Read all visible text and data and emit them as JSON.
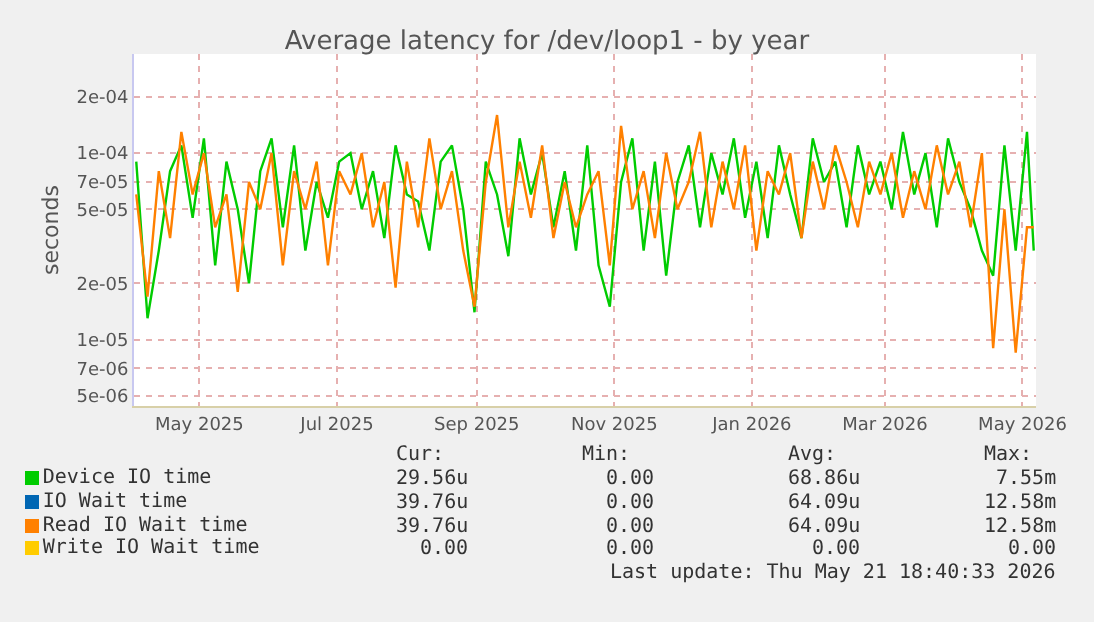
{
  "chart_data": {
    "type": "line",
    "title": "Average latency for /dev/loop1 - by year",
    "ylabel": "seconds",
    "log": "y",
    "grid": true,
    "legend": "bottom left",
    "marker": "none",
    "line_style": "solid",
    "x": [
      "2025-04-17",
      "2025-04-22",
      "2025-04-27",
      "2025-05-02",
      "2025-05-07",
      "2025-05-12",
      "2025-05-17",
      "2025-05-22",
      "2025-05-27",
      "2025-06-01",
      "2025-06-06",
      "2025-06-11",
      "2025-06-16",
      "2025-06-21",
      "2025-06-26",
      "2025-07-01",
      "2025-07-06",
      "2025-07-11",
      "2025-07-16",
      "2025-07-21",
      "2025-07-26",
      "2025-07-31",
      "2025-08-05",
      "2025-08-10",
      "2025-08-15",
      "2025-08-20",
      "2025-08-25",
      "2025-08-30",
      "2025-09-04",
      "2025-09-09",
      "2025-09-14",
      "2025-09-19",
      "2025-09-24",
      "2025-09-29",
      "2025-10-04",
      "2025-10-09",
      "2025-10-14",
      "2025-10-19",
      "2025-10-24",
      "2025-10-29",
      "2025-11-03",
      "2025-11-08",
      "2025-11-13",
      "2025-11-18",
      "2025-11-23",
      "2025-11-28",
      "2025-12-03",
      "2025-12-08",
      "2025-12-13",
      "2025-12-18",
      "2025-12-23",
      "2025-12-28",
      "2026-01-02",
      "2026-01-07",
      "2026-01-12",
      "2026-01-17",
      "2026-01-22",
      "2026-01-27",
      "2026-02-01",
      "2026-02-06",
      "2026-02-11",
      "2026-02-16",
      "2026-02-21",
      "2026-02-26",
      "2026-03-03",
      "2026-03-08",
      "2026-03-13",
      "2026-03-18",
      "2026-03-23",
      "2026-03-28",
      "2026-04-02",
      "2026-04-07",
      "2026-04-12",
      "2026-04-17",
      "2026-04-22",
      "2026-04-27",
      "2026-05-02",
      "2026-05-07",
      "2026-05-12",
      "2026-05-17",
      "2026-05-20"
    ],
    "xlim": [
      "2025-04-16",
      "2026-05-21"
    ],
    "xticks": [
      {
        "value": "2025-05-15",
        "label": "May 2025"
      },
      {
        "value": "2025-07-15",
        "label": "Jul 2025"
      },
      {
        "value": "2025-09-15",
        "label": "Sep 2025"
      },
      {
        "value": "2025-11-15",
        "label": "Nov 2025"
      },
      {
        "value": "2026-01-15",
        "label": "Jan 2026"
      },
      {
        "value": "2026-03-15",
        "label": "Mar 2026"
      },
      {
        "value": "2026-05-15",
        "label": "May 2026"
      }
    ],
    "ylim": [
      4.4e-06,
      0.00034
    ],
    "yticks": [
      {
        "value": 5e-06,
        "label": "5e-06"
      },
      {
        "value": 7e-06,
        "label": "7e-06"
      },
      {
        "value": 1e-05,
        "label": "1e-05"
      },
      {
        "value": 2e-05,
        "label": "2e-05"
      },
      {
        "value": 5e-05,
        "label": "5e-05"
      },
      {
        "value": 7e-05,
        "label": "7e-05"
      },
      {
        "value": 0.0001,
        "label": "1e-04"
      },
      {
        "value": 0.0002,
        "label": "2e-04"
      }
    ],
    "series": [
      {
        "name": "Device IO time",
        "color": "#00cc00",
        "values": [
          9e-05,
          1.3e-05,
          3e-05,
          8e-05,
          0.00011,
          4.5e-05,
          0.00012,
          2.5e-05,
          9e-05,
          5e-05,
          2e-05,
          8e-05,
          0.00012,
          4e-05,
          0.00011,
          3e-05,
          7e-05,
          4.5e-05,
          9e-05,
          0.0001,
          5e-05,
          8e-05,
          3.5e-05,
          0.00011,
          6e-05,
          5.5e-05,
          3e-05,
          9e-05,
          0.00011,
          5e-05,
          1.4e-05,
          9e-05,
          6e-05,
          2.8e-05,
          0.00012,
          6e-05,
          0.0001,
          4e-05,
          8e-05,
          3e-05,
          0.00011,
          2.5e-05,
          1.5e-05,
          7e-05,
          0.00012,
          3e-05,
          9e-05,
          2.2e-05,
          7e-05,
          0.00011,
          4e-05,
          0.0001,
          6e-05,
          0.00012,
          4.5e-05,
          9e-05,
          3.5e-05,
          0.00011,
          6e-05,
          3.5e-05,
          0.00012,
          7e-05,
          9e-05,
          4e-05,
          0.00011,
          6e-05,
          9e-05,
          5e-05,
          0.00013,
          6e-05,
          0.0001,
          4e-05,
          0.00012,
          7e-05,
          5e-05,
          3e-05,
          2.2e-05,
          0.00011,
          3e-05,
          0.00013,
          3e-05
        ]
      },
      {
        "name": "IO Wait time",
        "color": "#0066b3",
        "values": [
          null,
          null,
          null,
          null,
          null,
          null,
          null,
          null,
          null,
          null,
          null,
          null,
          null,
          null,
          null,
          null,
          null,
          null,
          null,
          null,
          null,
          null,
          null,
          null,
          null,
          null,
          null,
          null,
          null,
          null,
          null,
          null,
          null,
          null,
          null,
          null,
          null,
          null,
          null,
          null,
          null,
          null,
          null,
          null,
          null,
          null,
          null,
          null,
          null,
          null,
          null,
          null,
          null,
          null,
          null,
          null,
          null,
          null,
          null,
          null,
          null,
          null,
          null,
          null,
          null,
          null,
          null,
          null,
          null,
          null,
          null,
          null,
          null,
          null,
          null,
          null,
          null,
          null,
          null,
          null,
          null
        ]
      },
      {
        "name": "Read IO Wait time",
        "color": "#ff8000",
        "values": [
          6e-05,
          1.7e-05,
          8e-05,
          3.5e-05,
          0.00013,
          6e-05,
          0.0001,
          4e-05,
          6e-05,
          1.8e-05,
          7e-05,
          5e-05,
          0.0001,
          2.5e-05,
          8e-05,
          5e-05,
          9e-05,
          2.5e-05,
          8e-05,
          6e-05,
          0.0001,
          4e-05,
          7e-05,
          1.9e-05,
          9e-05,
          4e-05,
          0.00012,
          5e-05,
          8e-05,
          3e-05,
          1.5e-05,
          7e-05,
          0.00016,
          4e-05,
          9e-05,
          4.5e-05,
          0.00011,
          3.5e-05,
          7e-05,
          4e-05,
          6e-05,
          8e-05,
          2.5e-05,
          0.00014,
          5e-05,
          8e-05,
          3.5e-05,
          0.0001,
          5e-05,
          7e-05,
          0.00013,
          4e-05,
          9e-05,
          5e-05,
          0.00011,
          3e-05,
          8e-05,
          6e-05,
          0.0001,
          3.5e-05,
          9e-05,
          5e-05,
          0.00011,
          7e-05,
          4e-05,
          9e-05,
          6e-05,
          0.0001,
          4.5e-05,
          8e-05,
          5e-05,
          0.00011,
          6e-05,
          9e-05,
          4e-05,
          0.0001,
          9e-06,
          5e-05,
          8.5e-06,
          4e-05,
          4e-05
        ]
      },
      {
        "name": "Write IO Wait time",
        "color": "#ffcc00",
        "values": [
          null,
          null,
          null,
          null,
          null,
          null,
          null,
          null,
          null,
          null,
          null,
          null,
          null,
          null,
          null,
          null,
          null,
          null,
          null,
          null,
          null,
          null,
          null,
          null,
          null,
          null,
          null,
          null,
          null,
          null,
          null,
          null,
          null,
          null,
          null,
          null,
          null,
          null,
          null,
          null,
          null,
          null,
          null,
          null,
          null,
          null,
          null,
          null,
          null,
          null,
          null,
          null,
          null,
          null,
          null,
          null,
          null,
          null,
          null,
          null,
          null,
          null,
          null,
          null,
          null,
          null,
          null,
          null,
          null,
          null,
          null,
          null,
          null,
          null,
          null,
          null,
          null,
          null,
          null,
          null,
          null
        ]
      }
    ],
    "annotations": [
      "Cur:",
      "Min:",
      "Avg:",
      "Max:",
      "29.56u",
      "0.00",
      "68.86u",
      "7.55m",
      "39.76u",
      "0.00",
      "64.09u",
      "12.58m",
      "39.76u",
      "0.00",
      "64.09u",
      "12.58m",
      "0.00",
      "0.00",
      "0.00",
      "0.00",
      "Last update: Thu May 21 18:40:33 2026"
    ]
  }
}
